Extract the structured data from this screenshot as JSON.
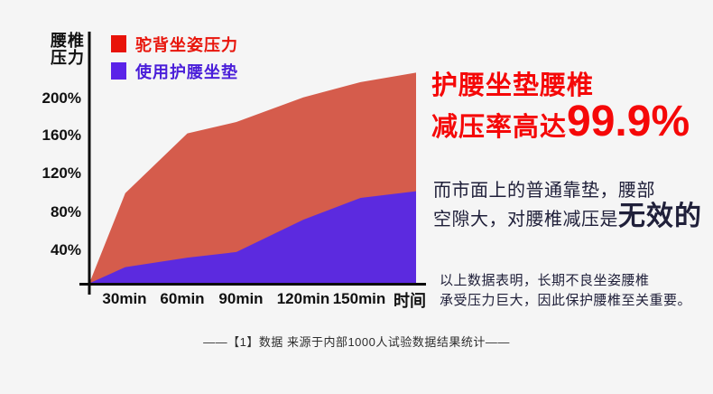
{
  "background_color": "#f5f5f5",
  "chart_data": {
    "type": "area",
    "title": "",
    "y_axis_label": "腰椎压力",
    "y_axis_label_lines": {
      "line1": "腰椎",
      "line2": "压力"
    },
    "x_axis_label": "时间",
    "y_tick_labels": [
      "40%",
      "80%",
      "120%",
      "160%",
      "200%"
    ],
    "x_tick_labels": [
      "30min",
      "60min",
      "90min",
      "120min",
      "150min"
    ],
    "ylim": [
      0,
      230
    ],
    "grid": false,
    "legend_position": "top-left",
    "x_points": [
      "origin",
      "30min",
      "60min",
      "90min",
      "120min",
      "150min",
      "right-edge"
    ],
    "series": [
      {
        "name": "驼背坐姿压力",
        "color": "#d55c4c",
        "legend_swatch_color": "#e81309",
        "legend_text_color": "#e8150b",
        "values_pct": [
          0,
          95,
          158,
          170,
          196,
          212,
          222
        ]
      },
      {
        "name": "使用护腰坐垫",
        "color": "#5c2adf",
        "legend_swatch_color": "#5b23e8",
        "legend_text_color": "#4a1ed9",
        "values_pct": [
          0,
          17,
          27,
          33,
          67,
          90,
          97
        ]
      }
    ]
  },
  "right_panel": {
    "headline_line1": "护腰坐垫腰椎",
    "headline_line2_prefix": "减压率高达",
    "headline_big_number": "99.9%",
    "headline_color": "#f50808",
    "body_line1": "而市面上的普通靠垫，腰部",
    "body_line2_prefix": "空隙大，对腰椎减压是",
    "body_line2_emphasis": "无效的",
    "note_line1": "以上数据表明，长期不良坐姿腰椎",
    "note_line2": "承受压力巨大，因此保护腰椎至关重要。"
  },
  "footnote": "——【1】数据 来源于内部1000人试验数据结果统计——"
}
